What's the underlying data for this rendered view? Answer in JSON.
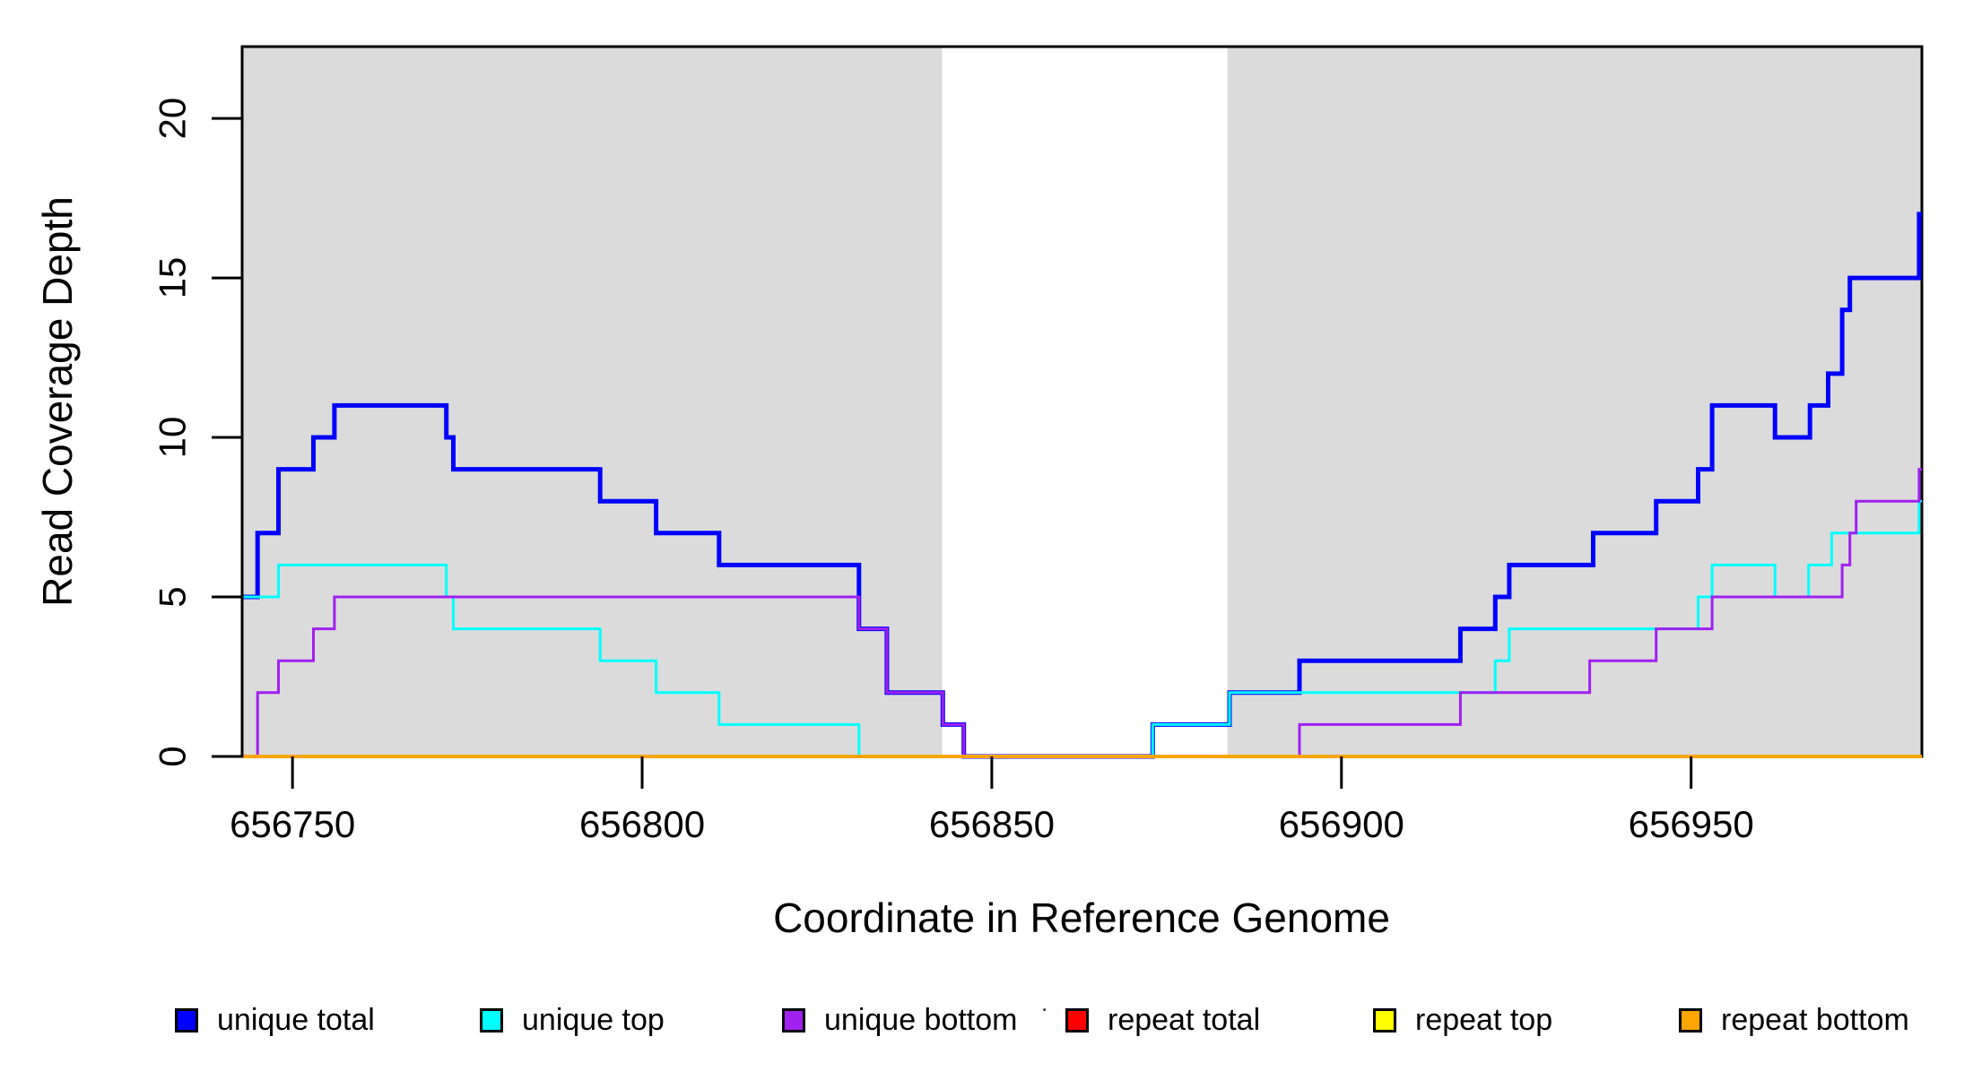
{
  "figure": {
    "background": "#ffffff",
    "stray_mark": "."
  },
  "chart_data": {
    "type": "line",
    "subtype": "step",
    "title": "",
    "xlabel": "Coordinate in Reference Genome",
    "ylabel": "Read Coverage Depth",
    "xlim": [
      656742.8,
      656983.0
    ],
    "ylim": [
      0,
      22.25
    ],
    "x_ticks": [
      656750,
      656800,
      656850,
      656900,
      656950
    ],
    "y_ticks": [
      0,
      5,
      10,
      15,
      20
    ],
    "grid": false,
    "legend_position": "bottom",
    "shade_color": "#DBDBDB",
    "shaded_x_ranges": [
      [
        656742.8,
        656842.9
      ],
      [
        656883.7,
        656983.0
      ]
    ],
    "x_end": 656983.0,
    "series": [
      {
        "name": "unique total",
        "color": "#0000FF",
        "line_width": 5,
        "steps": [
          [
            656743,
            5
          ],
          [
            656745,
            7
          ],
          [
            656748,
            9
          ],
          [
            656753,
            10
          ],
          [
            656756,
            11
          ],
          [
            656772,
            10
          ],
          [
            656773,
            9
          ],
          [
            656794,
            8
          ],
          [
            656802,
            7
          ],
          [
            656811,
            6
          ],
          [
            656831,
            4
          ],
          [
            656835,
            2
          ],
          [
            656843,
            1
          ],
          [
            656846,
            0
          ],
          [
            656873,
            1
          ],
          [
            656884,
            2
          ],
          [
            656894,
            3
          ],
          [
            656917,
            4
          ],
          [
            656922,
            5
          ],
          [
            656924,
            6
          ],
          [
            656936,
            7
          ],
          [
            656945,
            8
          ],
          [
            656951,
            9
          ],
          [
            656953,
            11
          ],
          [
            656962,
            10
          ],
          [
            656967,
            11
          ],
          [
            656969.6,
            12
          ],
          [
            656971.6,
            14
          ],
          [
            656972.7,
            15
          ],
          [
            656982.6,
            17
          ]
        ]
      },
      {
        "name": "unique top",
        "color": "#00FFFF",
        "line_width": 3,
        "steps": [
          [
            656743,
            5
          ],
          [
            656748,
            6
          ],
          [
            656772,
            5
          ],
          [
            656773,
            4
          ],
          [
            656794,
            3
          ],
          [
            656802,
            2
          ],
          [
            656811,
            1
          ],
          [
            656831,
            0
          ],
          [
            656873,
            1
          ],
          [
            656884,
            2
          ],
          [
            656922,
            3
          ],
          [
            656924,
            4
          ],
          [
            656951,
            5
          ],
          [
            656953,
            6
          ],
          [
            656962,
            5
          ],
          [
            656966.8,
            6
          ],
          [
            656970.1,
            7
          ],
          [
            656982.6,
            8
          ]
        ]
      },
      {
        "name": "unique bottom",
        "color": "#A020F0",
        "line_width": 3,
        "steps": [
          [
            656743,
            0
          ],
          [
            656745,
            2
          ],
          [
            656748,
            3
          ],
          [
            656753,
            4
          ],
          [
            656756,
            5
          ],
          [
            656831,
            4
          ],
          [
            656835,
            2
          ],
          [
            656843,
            1
          ],
          [
            656846,
            0
          ],
          [
            656894,
            1
          ],
          [
            656917,
            2
          ],
          [
            656935.5,
            3
          ],
          [
            656945,
            4
          ],
          [
            656953,
            5
          ],
          [
            656971.6,
            6
          ],
          [
            656972.7,
            7
          ],
          [
            656973.6,
            8
          ],
          [
            656982.6,
            9
          ]
        ]
      },
      {
        "name": "repeat total",
        "color": "#FF0000",
        "line_width": 3,
        "steps": [
          [
            656743,
            0
          ]
        ]
      },
      {
        "name": "repeat top",
        "color": "#FFFF00",
        "line_width": 3,
        "steps": [
          [
            656743,
            0
          ]
        ]
      },
      {
        "name": "repeat bottom",
        "color": "#FFA500",
        "line_width": 4,
        "steps": [
          [
            656743,
            0
          ]
        ]
      }
    ],
    "legend_items": [
      {
        "label": "unique total",
        "color": "#0000FF"
      },
      {
        "label": "unique top",
        "color": "#00FFFF"
      },
      {
        "label": "unique bottom",
        "color": "#A020F0"
      },
      {
        "label": "repeat total",
        "color": "#FF0000"
      },
      {
        "label": "repeat top",
        "color": "#FFFF00"
      },
      {
        "label": "repeat bottom",
        "color": "#FFA500"
      }
    ]
  }
}
